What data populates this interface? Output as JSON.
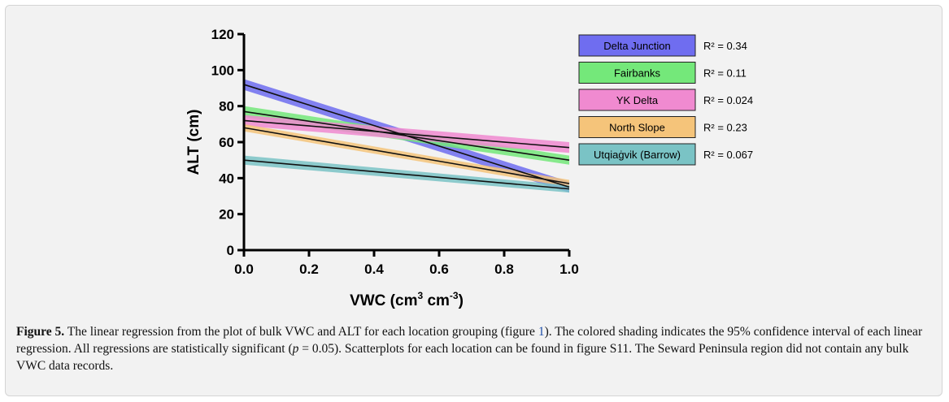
{
  "chart_data": {
    "type": "line",
    "xlabel": "VWC (cm",
    "xlabel_sup1": "3",
    "xlabel_mid": " cm",
    "xlabel_sup2": "-3",
    "xlabel_end": ")",
    "ylabel": "ALT (cm)",
    "xlim": [
      0,
      1.0
    ],
    "ylim": [
      0,
      120
    ],
    "x_ticks": [
      "0.0",
      "0.2",
      "0.4",
      "0.6",
      "0.8",
      "1.0"
    ],
    "y_ticks": [
      "0",
      "20",
      "40",
      "60",
      "80",
      "100",
      "120"
    ],
    "grid": false,
    "legend_position": "right",
    "series": [
      {
        "name": "Delta Junction",
        "color": "#6f6df0",
        "x": [
          0,
          1
        ],
        "y": [
          92,
          35
        ],
        "ci": [
          3,
          3
        ],
        "r2": "R² = 0.34"
      },
      {
        "name": "Fairbanks",
        "color": "#74e87a",
        "x": [
          0,
          1
        ],
        "y": [
          77,
          50
        ],
        "ci": [
          3,
          2.5
        ],
        "r2": "R² = 0.11"
      },
      {
        "name": "YK Delta",
        "color": "#f08ad0",
        "x": [
          0,
          1
        ],
        "y": [
          72,
          57
        ],
        "ci": [
          3,
          3
        ],
        "r2": "R² = 0.024"
      },
      {
        "name": "North Slope",
        "color": "#f5c47a",
        "x": [
          0,
          1
        ],
        "y": [
          68,
          37
        ],
        "ci": [
          2,
          2
        ],
        "r2": "R² = 0.23"
      },
      {
        "name": "Utqiaġvik (Barrow)",
        "color": "#7ac3c5",
        "x": [
          0,
          1
        ],
        "y": [
          50,
          34
        ],
        "ci": [
          2.5,
          2
        ],
        "r2": "R² = 0.067"
      }
    ]
  },
  "caption": {
    "label": "Figure 5.",
    "text_1": " The linear regression from the plot of bulk VWC and ALT for each location grouping (figure ",
    "ref_1": "1",
    "text_2": "). The colored shading indicates the 95% confidence interval of each linear regression. All regressions are statistically significant (",
    "p_symbol": "p",
    "text_3": " = 0.05). Scatterplots for each location can be found in figure S11. The Seward Peninsula region did not contain any bulk VWC data records."
  }
}
